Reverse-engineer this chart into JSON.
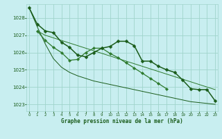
{
  "title": "Graphe pression niveau de la mer (hPa)",
  "bg_color": "#c8eef0",
  "grid_color": "#a0d4cc",
  "line_color_dark": "#1a5c1a",
  "line_color_med": "#2d7a2d",
  "xlim": [
    -0.3,
    23.3
  ],
  "ylim": [
    1022.6,
    1028.8
  ],
  "yticks": [
    1023,
    1024,
    1025,
    1026,
    1027,
    1028
  ],
  "xticks": [
    0,
    1,
    2,
    3,
    4,
    5,
    6,
    7,
    8,
    9,
    10,
    11,
    12,
    13,
    14,
    15,
    16,
    17,
    18,
    19,
    20,
    21,
    22,
    23
  ],
  "series": [
    {
      "y": [
        1028.6,
        1027.65,
        1027.25,
        1027.15,
        1026.6,
        1026.3,
        1025.85,
        1025.75,
        1026.0,
        1026.25,
        1026.35,
        1026.65,
        1026.65,
        1026.4,
        1025.5,
        1025.5,
        1025.2,
        1025.0,
        1024.85,
        1024.4,
        1023.9,
        1023.85,
        1023.85,
        1023.2
      ],
      "color": "#1a5c1a",
      "lw": 1.1,
      "marker": "D",
      "ms": 2.5,
      "zorder": 4
    },
    {
      "y": [
        null,
        1027.25,
        1026.7,
        1026.3,
        1026.0,
        1025.55,
        1025.6,
        1026.0,
        1026.25,
        1026.25,
        1025.95,
        1025.7,
        1025.4,
        1025.1,
        1024.8,
        1024.5,
        1024.2,
        1023.9,
        null,
        null,
        null,
        null,
        null,
        null
      ],
      "color": "#2d7a2d",
      "lw": 0.9,
      "marker": "D",
      "ms": 2.2,
      "zorder": 3
    },
    {
      "y": [
        null,
        1027.25,
        1027.0,
        1026.85,
        1026.7,
        1026.55,
        1026.4,
        1026.25,
        1026.1,
        1025.95,
        1025.8,
        1025.65,
        1025.5,
        1025.35,
        1025.2,
        1025.05,
        1024.9,
        1024.75,
        1024.6,
        1024.45,
        1024.3,
        1024.15,
        1024.0,
        1023.85
      ],
      "color": "#2d7a2d",
      "lw": 0.7,
      "marker": null,
      "ms": 0,
      "zorder": 2
    },
    {
      "y": [
        1028.6,
        1027.5,
        1026.5,
        1025.65,
        1025.15,
        1024.85,
        1024.65,
        1024.5,
        1024.35,
        1024.25,
        1024.15,
        1024.05,
        1023.95,
        1023.85,
        1023.75,
        1023.65,
        1023.55,
        1023.45,
        1023.35,
        1023.25,
        1023.15,
        1023.1,
        1023.05,
        1023.0
      ],
      "color": "#1a5c1a",
      "lw": 0.7,
      "marker": null,
      "ms": 0,
      "zorder": 2
    }
  ]
}
